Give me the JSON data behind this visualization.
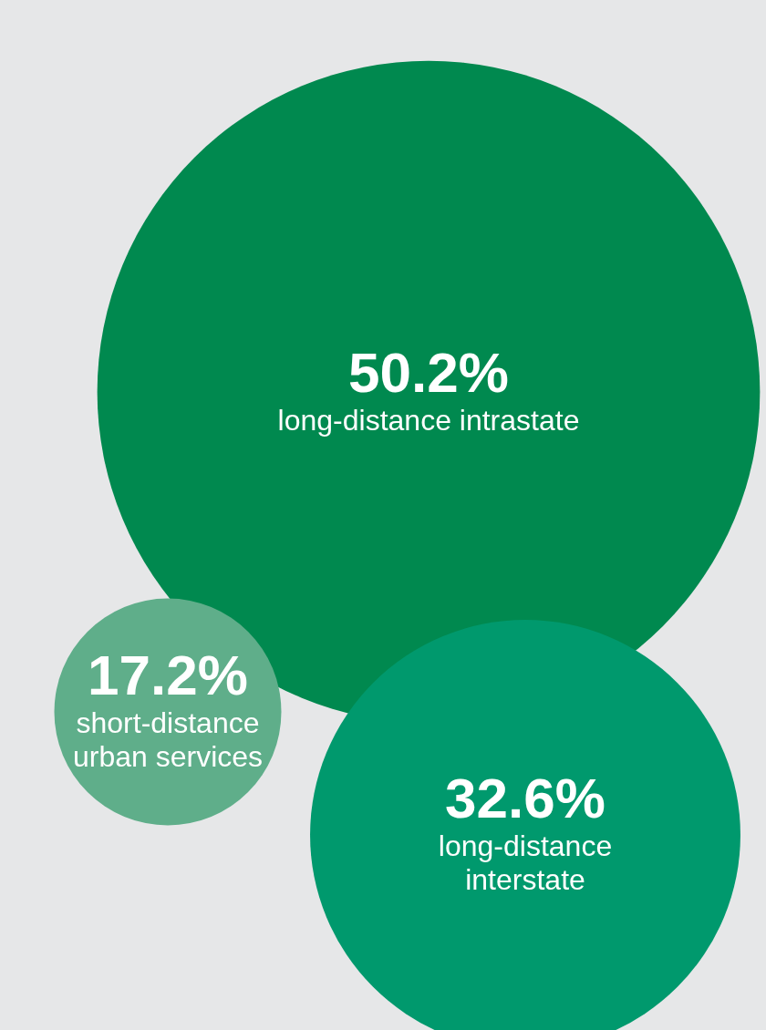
{
  "chart_data": {
    "type": "other",
    "categories": [
      "long-distance intrastate",
      "short-distance\nurban services",
      "long-distance\ninterstate"
    ],
    "values": [
      50.2,
      17.2,
      32.6
    ],
    "value_labels": [
      "50.2%",
      "17.2%",
      "32.6%"
    ],
    "colors": [
      "#00894f",
      "#5fae8a",
      "#00996d"
    ]
  }
}
